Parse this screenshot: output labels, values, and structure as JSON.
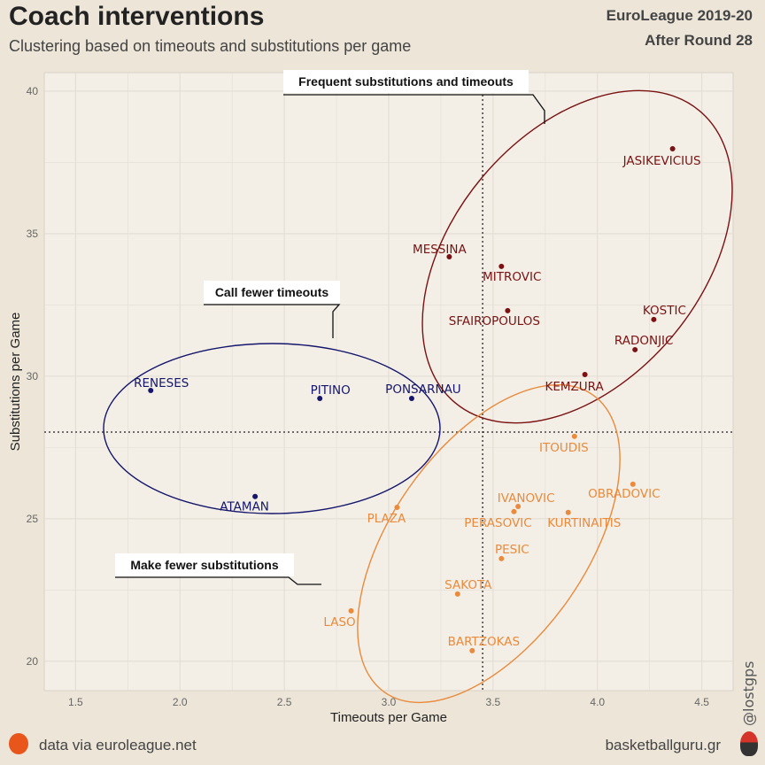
{
  "header": {
    "title": "Coach interventions",
    "subtitle": "Clustering based on timeouts and substitutions per game",
    "season": "EuroLeague 2019-20",
    "round": "After Round 28"
  },
  "footer": {
    "source": "data via euroleague.net",
    "site": "basketballguru.gr",
    "credit": "@lostgps"
  },
  "colors": {
    "cluster_frequent": "#7a1212",
    "cluster_fewer_timeouts": "#15166b",
    "cluster_fewer_subs": "#e98a3c",
    "panel": "#f3efe7",
    "grid": "#e2ddd4"
  },
  "chart_data": {
    "type": "scatter",
    "xlabel": "Timeouts per Game",
    "ylabel": "Substitutions per Game",
    "xlim": [
      1.35,
      4.65
    ],
    "ylim": [
      18.97,
      40.65
    ],
    "xticks": [
      "1.5",
      "2.0",
      "2.5",
      "3.0",
      "3.5",
      "4.0",
      "4.5"
    ],
    "yticks": [
      "20",
      "25",
      "30",
      "35",
      "40"
    ],
    "grid": true,
    "reference_lines": {
      "x": 3.45,
      "y": 28.04,
      "style": "dotted"
    },
    "clusters": [
      {
        "name": "Frequent substitutions and timeouts",
        "color_key": "cluster_frequent",
        "points": [
          {
            "label": "JASIKEVICIUS",
            "x": 4.36,
            "y": 37.98
          },
          {
            "label": "MESSINA",
            "x": 3.29,
            "y": 34.19
          },
          {
            "label": "MITROVIC",
            "x": 3.54,
            "y": 33.85
          },
          {
            "label": "SFAIROPOULOS",
            "x": 3.57,
            "y": 32.3
          },
          {
            "label": "KOSTIC",
            "x": 4.27,
            "y": 31.99
          },
          {
            "label": "RADONJIC",
            "x": 4.18,
            "y": 30.93
          },
          {
            "label": "KEMZURA",
            "x": 3.94,
            "y": 30.06
          }
        ]
      },
      {
        "name": "Call fewer timeouts",
        "color_key": "cluster_fewer_timeouts",
        "points": [
          {
            "label": "RENESES",
            "x": 1.86,
            "y": 29.5
          },
          {
            "label": "PITINO",
            "x": 2.67,
            "y": 29.22
          },
          {
            "label": "PONSARNAU",
            "x": 3.11,
            "y": 29.22
          },
          {
            "label": "ATAMAN",
            "x": 2.36,
            "y": 25.78
          }
        ]
      },
      {
        "name": "Make fewer substitutions",
        "color_key": "cluster_fewer_subs",
        "points": [
          {
            "label": "ITOUDIS",
            "x": 3.89,
            "y": 27.89
          },
          {
            "label": "OBRADOVIC",
            "x": 4.17,
            "y": 26.21
          },
          {
            "label": "IVANOVIC",
            "x": 3.62,
            "y": 25.43
          },
          {
            "label": "PERASOVIC",
            "x": 3.6,
            "y": 25.25
          },
          {
            "label": "KURTINAITIS",
            "x": 3.86,
            "y": 25.22
          },
          {
            "label": "PLAZA",
            "x": 3.04,
            "y": 25.4
          },
          {
            "label": "PESIC",
            "x": 3.54,
            "y": 23.6
          },
          {
            "label": "SAKOTA",
            "x": 3.33,
            "y": 22.36
          },
          {
            "label": "LASO",
            "x": 2.82,
            "y": 21.77
          },
          {
            "label": "BARTZOKAS",
            "x": 3.4,
            "y": 20.37
          }
        ]
      }
    ]
  }
}
